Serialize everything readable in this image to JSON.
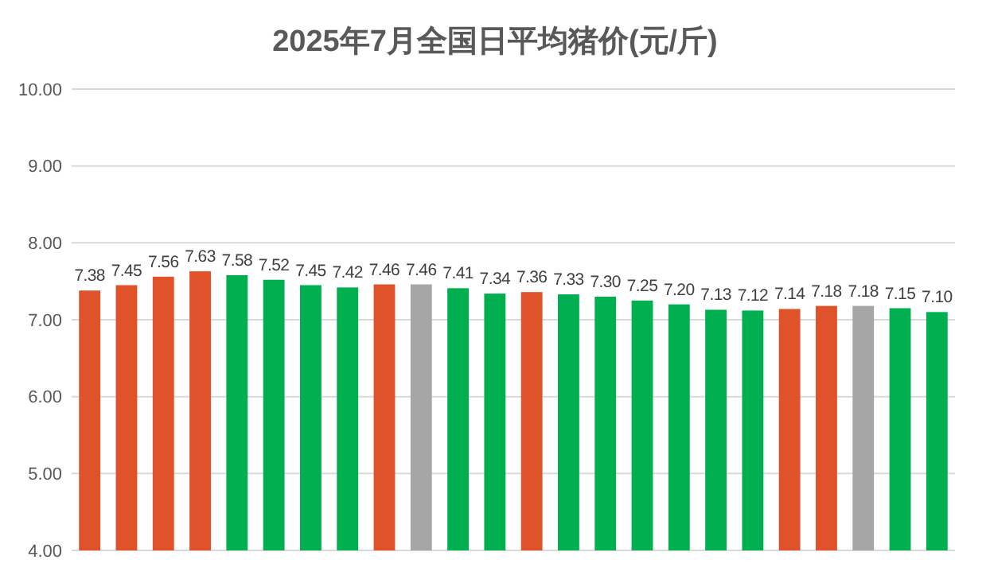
{
  "chart_data": {
    "type": "bar",
    "title": "2025年7月全国日平均猪价(元/斤)",
    "categories": [
      null,
      null,
      null,
      null,
      null,
      null,
      null,
      null,
      null,
      null,
      null,
      null,
      null,
      null,
      null,
      null,
      null,
      null,
      null,
      null,
      null,
      null,
      null,
      null
    ],
    "values": [
      7.38,
      7.45,
      7.56,
      7.63,
      7.58,
      7.52,
      7.45,
      7.42,
      7.46,
      7.46,
      7.41,
      7.34,
      7.36,
      7.33,
      7.3,
      7.25,
      7.2,
      7.13,
      7.12,
      7.14,
      7.18,
      7.18,
      7.15,
      7.1
    ],
    "value_labels": [
      "7.38",
      "7.45",
      "7.56",
      "7.63",
      "7.58",
      "7.52",
      "7.45",
      "7.42",
      "7.46",
      "7.46",
      "7.41",
      "7.34",
      "7.36",
      "7.33",
      "7.30",
      "7.25",
      "7.20",
      "7.13",
      "7.12",
      "7.14",
      "7.18",
      "7.18",
      "7.15",
      "7.10"
    ],
    "colors": [
      "#e0522a",
      "#e0522a",
      "#e0522a",
      "#e0522a",
      "#00b050",
      "#00b050",
      "#00b050",
      "#00b050",
      "#e0522a",
      "#a6a6a6",
      "#00b050",
      "#00b050",
      "#e0522a",
      "#00b050",
      "#00b050",
      "#00b050",
      "#00b050",
      "#00b050",
      "#00b050",
      "#e0522a",
      "#e0522a",
      "#a6a6a6",
      "#00b050",
      "#00b050"
    ],
    "ylim": [
      4,
      10
    ],
    "yticks": [
      {
        "value": 4,
        "label": "4.00"
      },
      {
        "value": 5,
        "label": "5.00"
      },
      {
        "value": 6,
        "label": "6.00"
      },
      {
        "value": 7,
        "label": "7.00"
      },
      {
        "value": 8,
        "label": "8.00"
      },
      {
        "value": 9,
        "label": "9.00"
      },
      {
        "value": 10,
        "label": "10.00"
      }
    ],
    "grid": "y",
    "tick_labels": "y"
  }
}
